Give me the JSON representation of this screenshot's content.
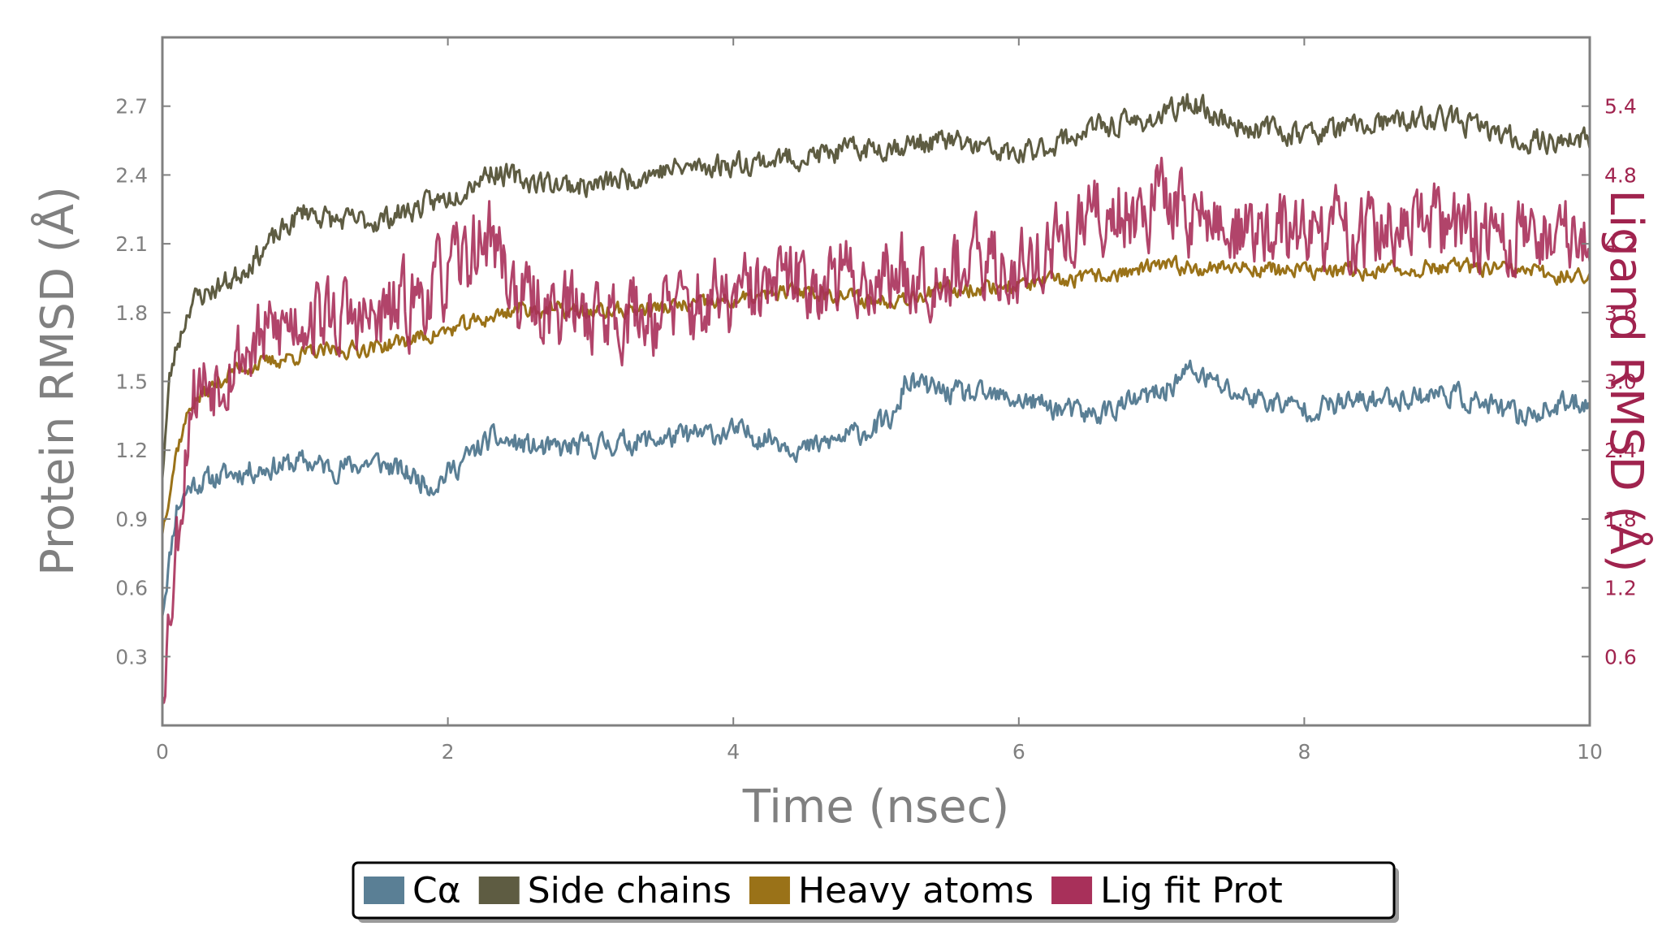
{
  "colors": {
    "calpha": "#5a7f95",
    "side_chains": "#5e5c42",
    "heavy_atoms": "#9a7218",
    "lig_fit_prot": "#a8305a",
    "axis": "#808080",
    "right_axis": "#a0234e"
  },
  "chart_data": {
    "type": "line",
    "xlabel": "Time (nsec)",
    "ylabel_left": "Protein RMSD (Å)",
    "ylabel_right": "Ligand RMSD (Å)",
    "xlim": [
      0,
      10
    ],
    "ylim_left": [
      0.0,
      3.0
    ],
    "ylim_right": [
      0.0,
      6.0
    ],
    "x_ticks": [
      "0",
      "2",
      "4",
      "6",
      "8",
      "10"
    ],
    "y_left_ticks": [
      "0.3",
      "0.6",
      "0.9",
      "1.2",
      "1.5",
      "1.8",
      "2.1",
      "2.4",
      "2.7"
    ],
    "y_right_ticks": [
      "0.6",
      "1.2",
      "1.8",
      "2.4",
      "3.0",
      "3.6",
      "4.2",
      "4.8",
      "5.4"
    ],
    "grid": false,
    "legend_position": "bottom-center",
    "series": [
      {
        "name": "Cα",
        "axis": "left",
        "color_key": "calpha",
        "noise": 0.05,
        "seed": 11,
        "x": [
          0,
          0.1,
          0.2,
          0.5,
          1.0,
          1.2,
          1.5,
          1.9,
          2.0,
          2.3,
          2.7,
          3.0,
          3.5,
          4.0,
          4.3,
          4.5,
          5.0,
          5.15,
          5.2,
          5.5,
          6.0,
          6.5,
          7.0,
          7.2,
          7.5,
          8.0,
          8.5,
          9.0,
          9.5,
          10.0
        ],
        "y": [
          0.5,
          0.95,
          1.05,
          1.1,
          1.15,
          1.12,
          1.15,
          1.05,
          1.1,
          1.25,
          1.2,
          1.22,
          1.25,
          1.28,
          1.25,
          1.2,
          1.3,
          1.35,
          1.5,
          1.45,
          1.42,
          1.35,
          1.45,
          1.55,
          1.45,
          1.38,
          1.42,
          1.45,
          1.35,
          1.42
        ]
      },
      {
        "name": "Side chains",
        "axis": "left",
        "color_key": "side_chains",
        "noise": 0.05,
        "seed": 23,
        "x": [
          0,
          0.05,
          0.1,
          0.2,
          0.5,
          1.0,
          1.2,
          1.5,
          2.0,
          2.3,
          2.5,
          3.0,
          3.5,
          4.0,
          4.5,
          5.0,
          5.5,
          6.0,
          6.5,
          7.0,
          7.2,
          7.5,
          8.0,
          8.5,
          9.0,
          9.5,
          10.0
        ],
        "y": [
          1.1,
          1.5,
          1.65,
          1.85,
          1.95,
          2.25,
          2.2,
          2.2,
          2.3,
          2.42,
          2.38,
          2.35,
          2.42,
          2.45,
          2.48,
          2.52,
          2.55,
          2.48,
          2.6,
          2.65,
          2.72,
          2.62,
          2.58,
          2.62,
          2.65,
          2.55,
          2.55
        ]
      },
      {
        "name": "Heavy atoms",
        "axis": "left",
        "color_key": "heavy_atoms",
        "noise": 0.035,
        "seed": 37,
        "x": [
          0,
          0.1,
          0.2,
          0.5,
          1.0,
          1.5,
          2.0,
          2.5,
          3.0,
          3.5,
          4.0,
          4.5,
          5.0,
          5.5,
          6.0,
          6.5,
          7.0,
          7.5,
          8.0,
          8.5,
          9.0,
          9.5,
          10.0
        ],
        "y": [
          0.85,
          1.2,
          1.4,
          1.55,
          1.62,
          1.65,
          1.72,
          1.82,
          1.8,
          1.82,
          1.85,
          1.9,
          1.85,
          1.9,
          1.92,
          1.95,
          2.0,
          2.0,
          1.98,
          1.98,
          2.0,
          1.98,
          1.95
        ]
      },
      {
        "name": "Lig fit Prot",
        "axis": "right",
        "color_key": "lig_fit_prot",
        "noise": 0.35,
        "seed": 53,
        "x": [
          0,
          0.05,
          0.1,
          0.15,
          0.2,
          0.5,
          1.0,
          1.5,
          2.0,
          2.3,
          2.5,
          3.0,
          3.5,
          4.0,
          4.5,
          5.0,
          5.5,
          6.0,
          6.5,
          7.0,
          7.5,
          8.0,
          8.5,
          9.0,
          9.5,
          10.0
        ],
        "y": [
          0.4,
          1.0,
          1.6,
          2.2,
          2.9,
          3.2,
          3.6,
          3.5,
          3.9,
          4.3,
          3.7,
          3.6,
          3.6,
          3.7,
          3.9,
          3.9,
          4.0,
          4.0,
          4.4,
          4.6,
          4.3,
          4.3,
          4.3,
          4.35,
          4.25,
          4.3
        ]
      }
    ]
  },
  "legend": {
    "items": [
      {
        "label": "Cα",
        "color_key": "calpha"
      },
      {
        "label": "Side chains",
        "color_key": "side_chains"
      },
      {
        "label": "Heavy atoms",
        "color_key": "heavy_atoms"
      },
      {
        "label": "Lig fit Prot",
        "color_key": "lig_fit_prot"
      }
    ]
  }
}
